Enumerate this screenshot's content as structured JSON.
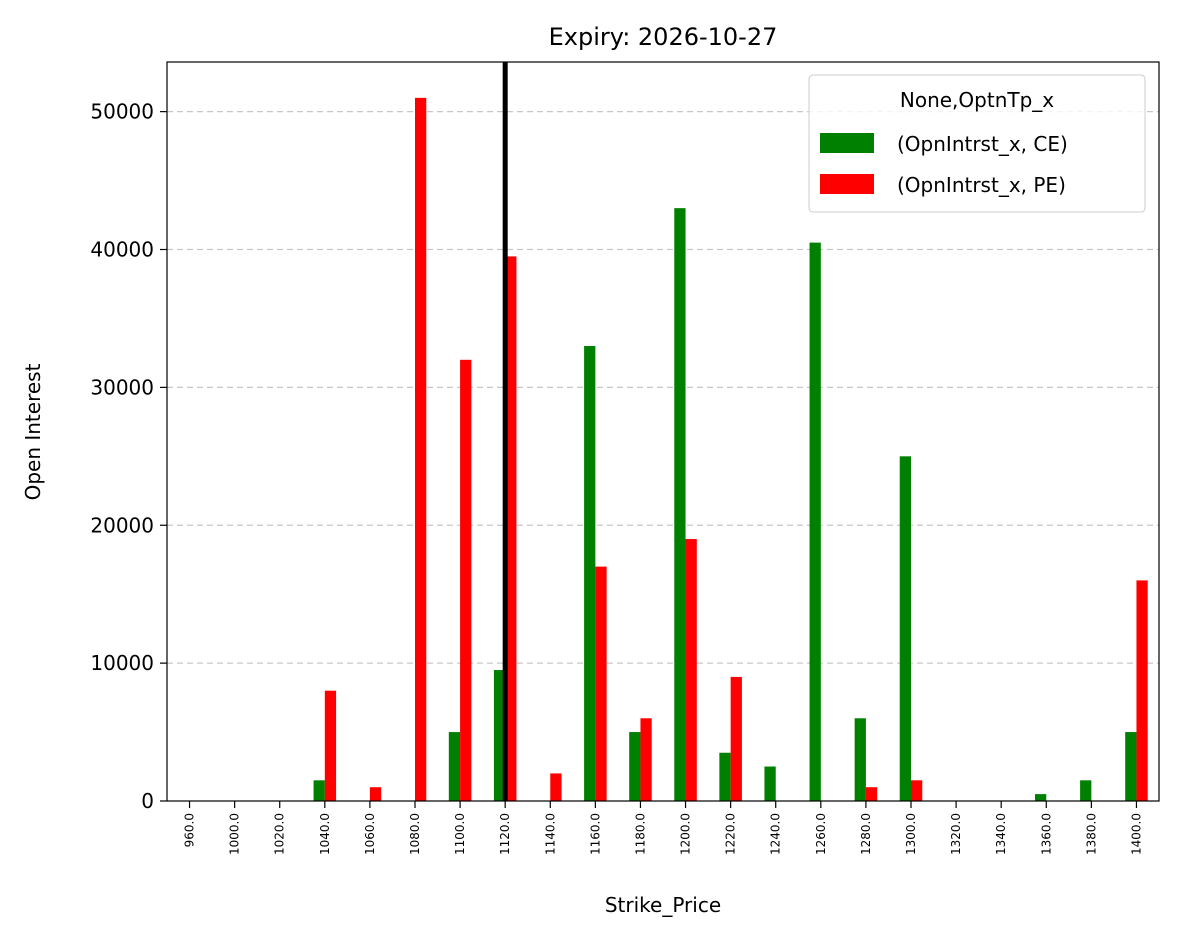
{
  "chart_data": {
    "type": "bar",
    "title": "Expiry: 2026-10-27",
    "xlabel": "Strike_Price",
    "ylabel": "Open Interest",
    "categories": [
      "960.0",
      "1000.0",
      "1020.0",
      "1040.0",
      "1060.0",
      "1080.0",
      "1100.0",
      "1120.0",
      "1140.0",
      "1160.0",
      "1180.0",
      "1200.0",
      "1220.0",
      "1240.0",
      "1260.0",
      "1280.0",
      "1300.0",
      "1320.0",
      "1340.0",
      "1360.0",
      "1380.0",
      "1400.0"
    ],
    "series": [
      {
        "name": "(OpnIntrst_x, CE)",
        "color": "#008000",
        "values": [
          0,
          0,
          0,
          1500,
          0,
          0,
          5000,
          9500,
          0,
          33000,
          5000,
          43000,
          3500,
          2500,
          40500,
          6000,
          25000,
          0,
          0,
          500,
          1500,
          5000
        ]
      },
      {
        "name": "(OpnIntrst_x, PE)",
        "color": "#ff0000",
        "values": [
          0,
          0,
          0,
          8000,
          1000,
          51000,
          32000,
          39500,
          2000,
          17000,
          6000,
          19000,
          9000,
          0,
          0,
          1000,
          1500,
          0,
          0,
          0,
          0,
          16000
        ]
      }
    ],
    "ylim": [
      0,
      53600
    ],
    "yticks": [
      0,
      10000,
      20000,
      30000,
      40000,
      50000
    ],
    "grid": "y-dashed",
    "legend": {
      "title": "None,OptnTp_x",
      "position": "top-right"
    },
    "reference_line": {
      "category": "1120.0",
      "color": "#000000"
    }
  }
}
